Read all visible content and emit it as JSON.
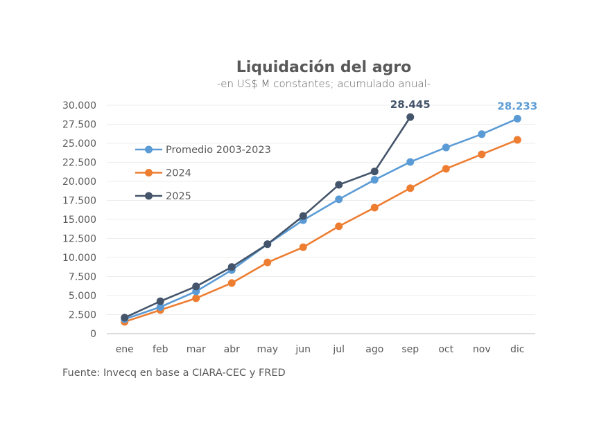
{
  "chart_data": {
    "type": "line",
    "title": "Liquidación del agro",
    "subtitle": "-en US$ M constantes; acumulado anual-",
    "xlabel": "",
    "ylabel": "",
    "categories": [
      "ene",
      "feb",
      "mar",
      "abr",
      "may",
      "jun",
      "jul",
      "ago",
      "sep",
      "oct",
      "nov",
      "dic"
    ],
    "ylim": [
      0,
      30000
    ],
    "yticks": [
      0,
      2500,
      5000,
      7500,
      10000,
      12500,
      15000,
      17500,
      20000,
      22500,
      25000,
      27500,
      30000
    ],
    "ytick_labels": [
      "0",
      "2.500",
      "5.000",
      "7.500",
      "10.000",
      "12.500",
      "15.000",
      "17.500",
      "20.000",
      "22.500",
      "25.000",
      "27.500",
      "30.000"
    ],
    "grid": true,
    "legend_position": "upper-left (inside plot)",
    "series": [
      {
        "name": "Promedio 2003-2023",
        "color": "#5B9BD5",
        "values": [
          1900,
          3500,
          5550,
          8350,
          11750,
          14900,
          17650,
          20200,
          22550,
          24450,
          26200,
          28233
        ],
        "end_label": "28.233"
      },
      {
        "name": "2024",
        "color": "#ED7D31",
        "values": [
          1550,
          3100,
          4650,
          6650,
          9350,
          11350,
          14100,
          16550,
          19100,
          21650,
          23550,
          25450
        ],
        "end_label": null
      },
      {
        "name": "2025",
        "color": "#44546A",
        "values": [
          2100,
          4250,
          6200,
          8750,
          11750,
          15450,
          19550,
          21300,
          28445,
          null,
          null,
          null
        ],
        "end_label": "28.445"
      }
    ],
    "annotations": [
      {
        "series": "2025",
        "category": "sep",
        "text": "28.445"
      },
      {
        "series": "Promedio 2003-2023",
        "category": "dic",
        "text": "28.233"
      }
    ],
    "source": "Fuente: Invecq en base a CIARA-CEC y FRED"
  }
}
